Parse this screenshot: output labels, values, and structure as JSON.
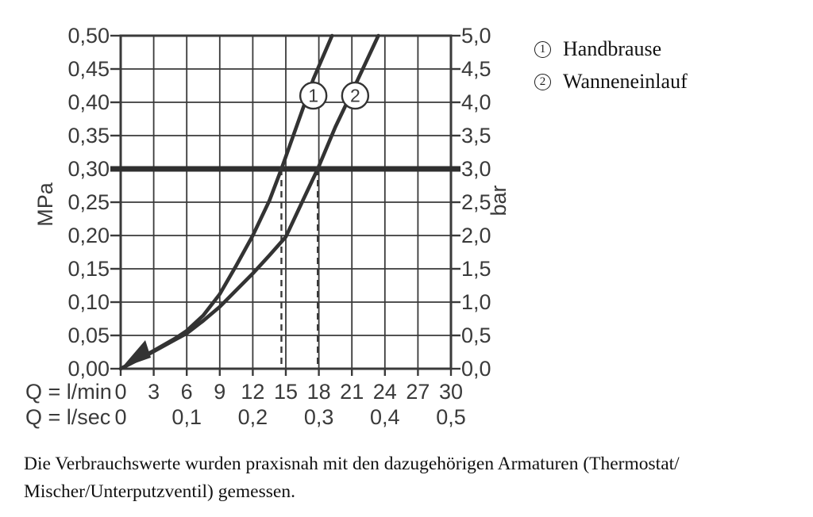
{
  "colors": {
    "ink": "#3a3a3a",
    "curve": "#333333",
    "text_serif": "#111111",
    "background": "#ffffff"
  },
  "chart_data": {
    "type": "line",
    "title": "",
    "x_axis_primary": {
      "label": "Q = l/min",
      "range_lmin": [
        0,
        30
      ],
      "ticks": [
        "0",
        "3",
        "6",
        "9",
        "12",
        "15",
        "18",
        "21",
        "24",
        "27",
        "30"
      ]
    },
    "x_axis_secondary": {
      "label": "Q = l/sec",
      "ticks": [
        {
          "q": 0,
          "text": "0"
        },
        {
          "q": 6,
          "text": "0,1"
        },
        {
          "q": 12,
          "text": "0,2"
        },
        {
          "q": 18,
          "text": "0,3"
        },
        {
          "q": 24,
          "text": "0,4"
        },
        {
          "q": 30,
          "text": "0,5"
        }
      ]
    },
    "y_axis_left": {
      "label": "MPa",
      "range_mpa": [
        0,
        0.5
      ],
      "ticks": [
        "0,00",
        "0,05",
        "0,10",
        "0,15",
        "0,20",
        "0,25",
        "0,30",
        "0,35",
        "0,40",
        "0,45",
        "0,50"
      ]
    },
    "y_axis_right": {
      "label": "bar",
      "range_bar": [
        0,
        5
      ],
      "ticks": [
        "0,0",
        "0,5",
        "1,0",
        "1,5",
        "2,0",
        "2,5",
        "3,0",
        "3,5",
        "4,0",
        "4,5",
        "5,0"
      ]
    },
    "grid": true,
    "reference_line": {
      "mpa": 0.3,
      "bar": 3.0
    },
    "dashed_guides_lmin": [
      14.6,
      17.9
    ],
    "series": [
      {
        "id": "1",
        "name": "Handbrause",
        "marker": {
          "q_lmin": 17.5,
          "p_mpa": 0.41
        },
        "flow_at_3bar_lmin": 14.6,
        "points_q_lmin_p_mpa": [
          [
            0,
            0
          ],
          [
            2,
            0.018
          ],
          [
            3,
            0.027
          ],
          [
            5,
            0.046
          ],
          [
            6,
            0.057
          ],
          [
            7.5,
            0.08
          ],
          [
            9,
            0.112
          ],
          [
            10.5,
            0.155
          ],
          [
            12,
            0.2
          ],
          [
            13.5,
            0.252
          ],
          [
            14.6,
            0.3
          ],
          [
            16,
            0.365
          ],
          [
            17.5,
            0.435
          ],
          [
            19.2,
            0.5
          ]
        ]
      },
      {
        "id": "2",
        "name": "Wanneneinlauf",
        "marker": {
          "q_lmin": 21.3,
          "p_mpa": 0.41
        },
        "flow_at_3bar_lmin": 17.9,
        "points_q_lmin_p_mpa": [
          [
            0,
            0
          ],
          [
            2,
            0.017
          ],
          [
            3,
            0.026
          ],
          [
            5,
            0.044
          ],
          [
            6,
            0.053
          ],
          [
            7.5,
            0.072
          ],
          [
            9,
            0.093
          ],
          [
            10.5,
            0.118
          ],
          [
            12,
            0.143
          ],
          [
            13.5,
            0.17
          ],
          [
            15,
            0.198
          ],
          [
            16.5,
            0.251
          ],
          [
            17.9,
            0.3
          ],
          [
            19.5,
            0.363
          ],
          [
            21,
            0.415
          ],
          [
            23.4,
            0.5
          ]
        ]
      }
    ]
  },
  "legend": {
    "items": [
      {
        "symbol": "1",
        "label": "Handbrause"
      },
      {
        "symbol": "2",
        "label": "Wanneneinlauf"
      }
    ]
  },
  "caption": {
    "line1": "Die Verbrauchswerte wurden praxisnah mit den dazugehörigen Armaturen (Thermostat/",
    "line2": "Mischer/Unterputzventil) gemessen."
  }
}
